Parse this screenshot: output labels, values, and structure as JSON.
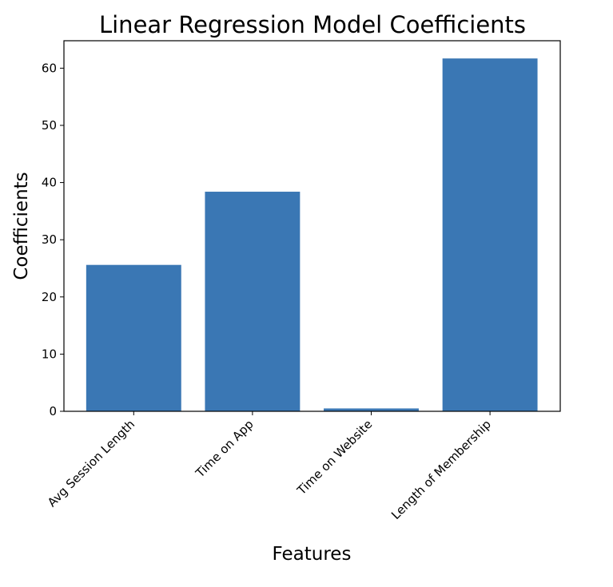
{
  "chart_data": {
    "type": "bar",
    "title": "Linear Regression Model Coefficients",
    "xlabel": "Features",
    "ylabel": "Coefficients",
    "categories": [
      "Avg Session Length",
      "Time on App",
      "Time on Website",
      "Length of Membership"
    ],
    "values": [
      25.6,
      38.4,
      0.5,
      61.7
    ],
    "ylim": [
      0,
      64.8
    ],
    "yticks": [
      0,
      10,
      20,
      30,
      40,
      50,
      60
    ],
    "grid": false,
    "bar_color": "#3a77b4"
  }
}
